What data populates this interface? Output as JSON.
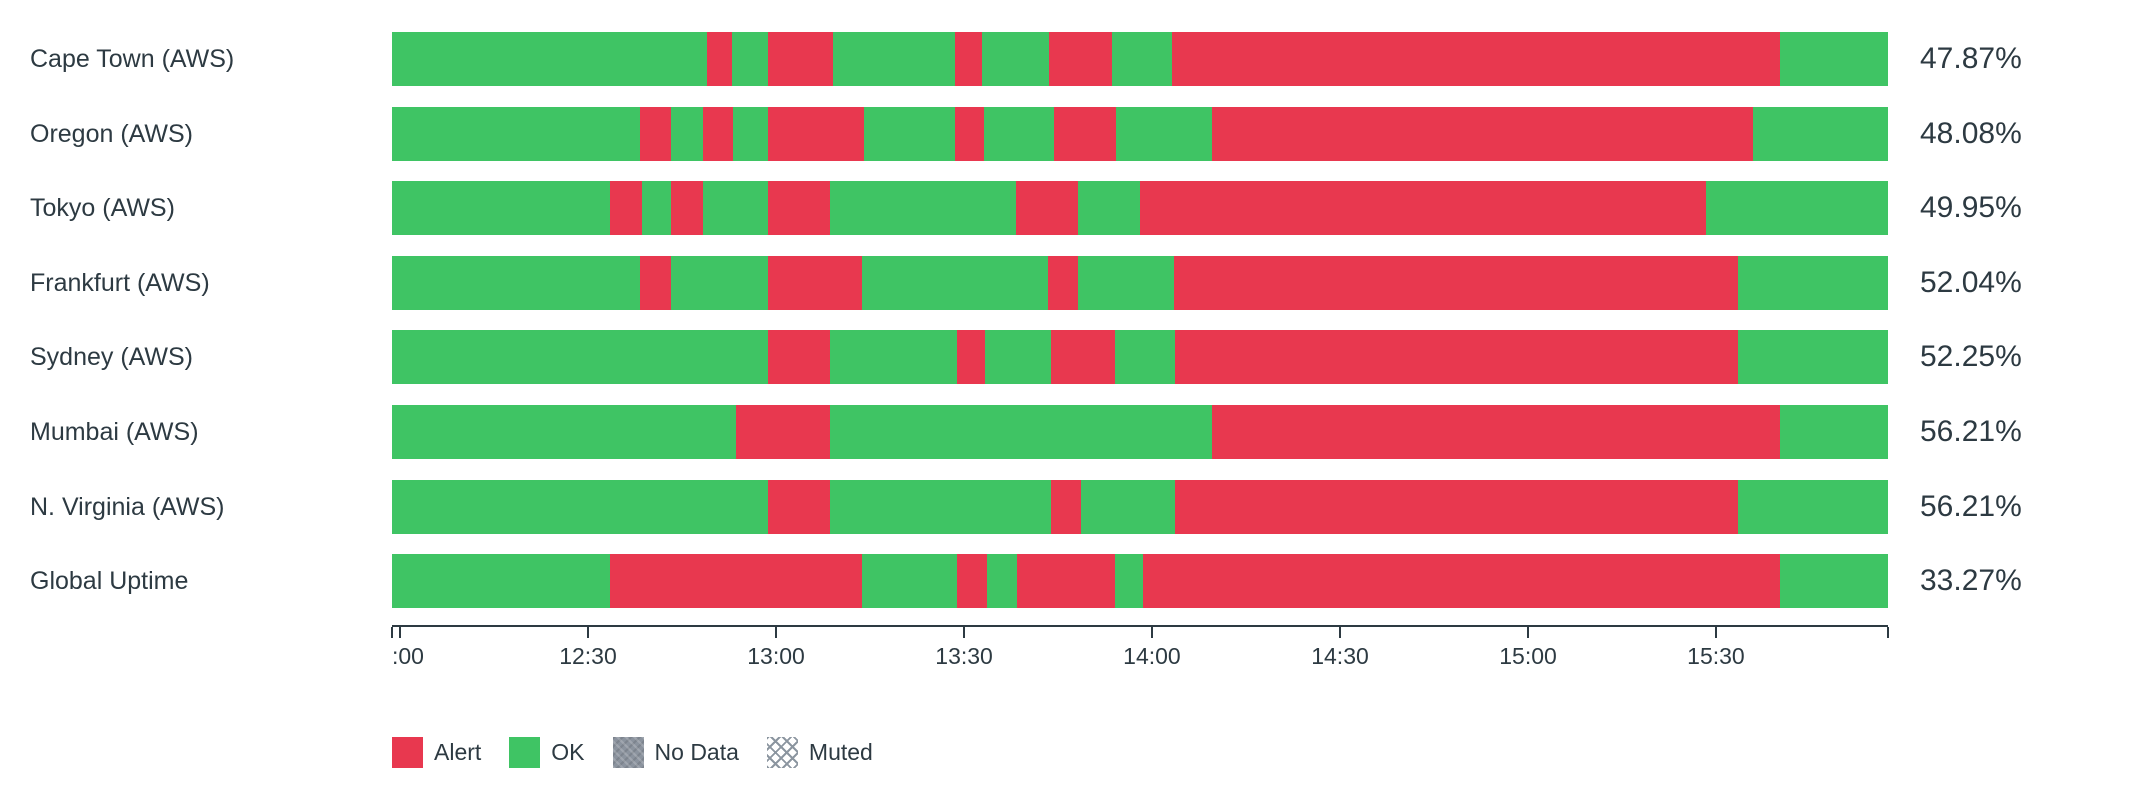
{
  "colors": {
    "alert": "#e8384f",
    "ok": "#3fc464",
    "no_data": "#8b939e",
    "muted_hatch": "#8c96a0",
    "text": "#2d3a42",
    "axis": "#2d3a42"
  },
  "legend": {
    "items": [
      {
        "label": "Alert",
        "status": "alert"
      },
      {
        "label": "OK",
        "status": "ok"
      },
      {
        "label": "No Data",
        "status": "no_data"
      },
      {
        "label": "Muted",
        "status": "muted"
      }
    ]
  },
  "chart_data": {
    "type": "bar",
    "orientation": "horizontal-stacked-status-timeline",
    "grid": false,
    "legend_position": "bottom-left",
    "x_axis": {
      "unit": "time",
      "visible_range": "12:00 to ~16:00",
      "ticks": [
        {
          "label": "",
          "pos_pct": 0
        },
        {
          "label": ":00",
          "pos_pct": 0.53,
          "align": "left"
        },
        {
          "label": "12:30",
          "pos_pct": 13.1
        },
        {
          "label": "13:00",
          "pos_pct": 25.67
        },
        {
          "label": "13:30",
          "pos_pct": 38.24
        },
        {
          "label": "14:00",
          "pos_pct": 50.8
        },
        {
          "label": "14:30",
          "pos_pct": 63.37
        },
        {
          "label": "15:00",
          "pos_pct": 75.94
        },
        {
          "label": "15:30",
          "pos_pct": 88.5
        },
        {
          "label": "",
          "pos_pct": 100
        }
      ]
    },
    "rows": [
      {
        "label": "Cape Town (AWS)",
        "value": "47.87%",
        "segments": [
          [
            "ok",
            21.06
          ],
          [
            "alert",
            1.67
          ],
          [
            "ok",
            2.4
          ],
          [
            "alert",
            4.35
          ],
          [
            "ok",
            8.15
          ],
          [
            "alert",
            1.81
          ],
          [
            "ok",
            4.48
          ],
          [
            "alert",
            4.21
          ],
          [
            "ok",
            4.01
          ],
          [
            "alert",
            40.64
          ],
          [
            "ok",
            7.22
          ]
        ]
      },
      {
        "label": "Oregon (AWS)",
        "value": "48.08%",
        "segments": [
          [
            "ok",
            16.58
          ],
          [
            "alert",
            2.07
          ],
          [
            "ok",
            2.14
          ],
          [
            "alert",
            2.0
          ],
          [
            "ok",
            2.34
          ],
          [
            "alert",
            6.42
          ],
          [
            "ok",
            6.08
          ],
          [
            "alert",
            1.94
          ],
          [
            "ok",
            4.68
          ],
          [
            "alert",
            4.15
          ],
          [
            "ok",
            6.41
          ],
          [
            "alert",
            36.17
          ],
          [
            "ok",
            9.02
          ]
        ]
      },
      {
        "label": "Tokyo (AWS)",
        "value": "49.95%",
        "segments": [
          [
            "ok",
            14.57
          ],
          [
            "alert",
            2.14
          ],
          [
            "ok",
            1.94
          ],
          [
            "alert",
            2.14
          ],
          [
            "ok",
            4.34
          ],
          [
            "alert",
            4.15
          ],
          [
            "ok",
            12.43
          ],
          [
            "alert",
            4.15
          ],
          [
            "ok",
            4.14
          ],
          [
            "alert",
            37.83
          ],
          [
            "ok",
            12.17
          ]
        ]
      },
      {
        "label": "Frankfurt (AWS)",
        "value": "52.04%",
        "segments": [
          [
            "ok",
            16.58
          ],
          [
            "alert",
            2.07
          ],
          [
            "ok",
            6.48
          ],
          [
            "alert",
            6.29
          ],
          [
            "ok",
            12.43
          ],
          [
            "alert",
            2.01
          ],
          [
            "ok",
            6.41
          ],
          [
            "alert",
            37.7
          ],
          [
            "ok",
            10.03
          ]
        ]
      },
      {
        "label": "Sydney (AWS)",
        "value": "52.25%",
        "segments": [
          [
            "ok",
            25.13
          ],
          [
            "alert",
            4.15
          ],
          [
            "ok",
            8.49
          ],
          [
            "alert",
            1.87
          ],
          [
            "ok",
            4.41
          ],
          [
            "alert",
            4.28
          ],
          [
            "ok",
            4.01
          ],
          [
            "alert",
            37.63
          ],
          [
            "ok",
            10.03
          ]
        ]
      },
      {
        "label": "Mumbai (AWS)",
        "value": "56.21%",
        "segments": [
          [
            "ok",
            22.99
          ],
          [
            "alert",
            6.29
          ],
          [
            "ok",
            25.53
          ],
          [
            "alert",
            37.97
          ],
          [
            "ok",
            7.22
          ]
        ]
      },
      {
        "label": "N. Virginia (AWS)",
        "value": "56.21%",
        "segments": [
          [
            "ok",
            25.13
          ],
          [
            "alert",
            4.15
          ],
          [
            "ok",
            14.77
          ],
          [
            "alert",
            2.01
          ],
          [
            "ok",
            6.28
          ],
          [
            "alert",
            37.63
          ],
          [
            "ok",
            10.03
          ]
        ]
      },
      {
        "label": "Global Uptime",
        "value": "33.27%",
        "segments": [
          [
            "ok",
            14.57
          ],
          [
            "alert",
            16.85
          ],
          [
            "ok",
            6.35
          ],
          [
            "alert",
            2.0
          ],
          [
            "ok",
            2.01
          ],
          [
            "alert",
            6.55
          ],
          [
            "ok",
            1.87
          ],
          [
            "alert",
            42.58
          ],
          [
            "ok",
            7.22
          ]
        ]
      }
    ]
  }
}
